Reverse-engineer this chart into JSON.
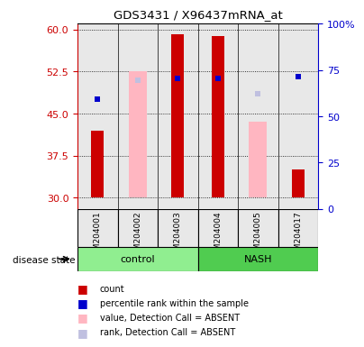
{
  "title": "GDS3431 / X96437mRNA_at",
  "samples": [
    "GSM204001",
    "GSM204002",
    "GSM204003",
    "GSM204004",
    "GSM204005",
    "GSM204017"
  ],
  "ylim_left": [
    28,
    61
  ],
  "ylim_right": [
    0,
    100
  ],
  "yticks_left": [
    30,
    37.5,
    45,
    52.5,
    60
  ],
  "yticks_right": [
    0,
    25,
    50,
    75,
    100
  ],
  "yticklabels_right": [
    "0",
    "25",
    "50",
    "75",
    "100%"
  ],
  "count_values": [
    42.0,
    null,
    59.2,
    58.8,
    null,
    35.0
  ],
  "count_bottom": [
    30,
    null,
    30,
    30,
    null,
    30
  ],
  "percentile_values": [
    47.5,
    null,
    51.2,
    51.2,
    null,
    51.5
  ],
  "absent_value_values": [
    null,
    52.5,
    null,
    null,
    43.5,
    null
  ],
  "absent_value_bottom": [
    null,
    30,
    null,
    null,
    30,
    null
  ],
  "absent_rank_values": [
    null,
    51.0,
    null,
    null,
    48.5,
    null
  ],
  "bar_color_count": "#cc0000",
  "bar_color_absent_value": "#ffb6c1",
  "bar_color_absent_rank": "#c0c0e0",
  "dot_color_percentile": "#0000cc",
  "control_color": "#90ee90",
  "nash_color": "#50cc50",
  "background_color": "#e8e8e8",
  "left_axis_color": "#cc0000",
  "right_axis_color": "#0000cc",
  "legend_items": [
    {
      "label": "count",
      "color": "#cc0000"
    },
    {
      "label": "percentile rank within the sample",
      "color": "#0000cc"
    },
    {
      "label": "value, Detection Call = ABSENT",
      "color": "#ffb6c1"
    },
    {
      "label": "rank, Detection Call = ABSENT",
      "color": "#c0c0e0"
    }
  ]
}
